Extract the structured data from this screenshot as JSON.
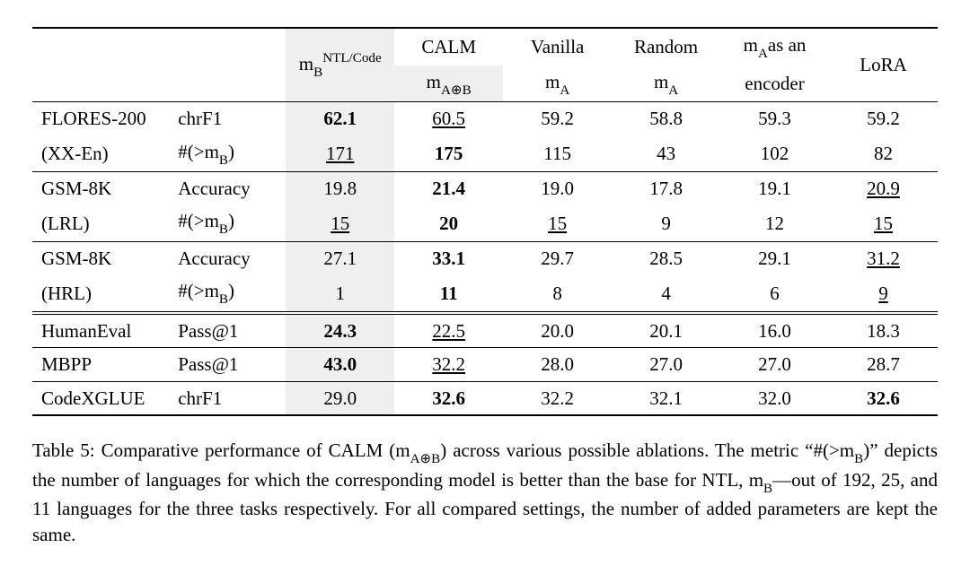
{
  "table": {
    "headers": {
      "mb_html": "m<span class='sub'>B</span><span class='sup'>NTL/Code</span>",
      "calm_line1": "CALM",
      "calm_line2_html": "m<span class='sub'>A⊕B</span>",
      "vanilla_line1": "Vanilla",
      "vanilla_line2_html": "m<span class='sub'>A</span>",
      "random_line1": "Random",
      "random_line2_html": "m<span class='sub'>A</span>",
      "enc_line1_html": "m<span class='sub'>A</span>as an",
      "enc_line2": "encoder",
      "lora": "LoRA"
    },
    "groups": [
      {
        "name_line1": "FLORES-200",
        "name_line2": "(XX-En)",
        "metric1": "chrF1",
        "metric2_html": "#(>m<span class='sub'>B</span>)",
        "row1": [
          {
            "v": "62.1",
            "b": true,
            "u": false
          },
          {
            "v": "60.5",
            "b": false,
            "u": true
          },
          {
            "v": "59.2",
            "b": false,
            "u": false
          },
          {
            "v": "58.8",
            "b": false,
            "u": false
          },
          {
            "v": "59.3",
            "b": false,
            "u": false
          },
          {
            "v": "59.2",
            "b": false,
            "u": false
          }
        ],
        "row2": [
          {
            "v": "171",
            "b": false,
            "u": true
          },
          {
            "v": "175",
            "b": true,
            "u": false
          },
          {
            "v": "115",
            "b": false,
            "u": false
          },
          {
            "v": "43",
            "b": false,
            "u": false
          },
          {
            "v": "102",
            "b": false,
            "u": false
          },
          {
            "v": "82",
            "b": false,
            "u": false
          }
        ],
        "border": "top"
      },
      {
        "name_line1": "GSM-8K",
        "name_line2": "(LRL)",
        "metric1": "Accuracy",
        "metric2_html": "#(>m<span class='sub'>B</span>)",
        "row1": [
          {
            "v": "19.8",
            "b": false,
            "u": false
          },
          {
            "v": "21.4",
            "b": true,
            "u": false
          },
          {
            "v": "19.0",
            "b": false,
            "u": false
          },
          {
            "v": "17.8",
            "b": false,
            "u": false
          },
          {
            "v": "19.1",
            "b": false,
            "u": false
          },
          {
            "v": "20.9",
            "b": false,
            "u": true
          }
        ],
        "row2": [
          {
            "v": "15",
            "b": false,
            "u": true
          },
          {
            "v": "20",
            "b": true,
            "u": false
          },
          {
            "v": "15",
            "b": false,
            "u": true
          },
          {
            "v": "9",
            "b": false,
            "u": false
          },
          {
            "v": "12",
            "b": false,
            "u": false
          },
          {
            "v": "15",
            "b": false,
            "u": true
          }
        ],
        "border": "mid"
      },
      {
        "name_line1": "GSM-8K",
        "name_line2": "(HRL)",
        "metric1": "Accuracy",
        "metric2_html": "#(>m<span class='sub'>B</span>)",
        "row1": [
          {
            "v": "27.1",
            "b": false,
            "u": false
          },
          {
            "v": "33.1",
            "b": true,
            "u": false
          },
          {
            "v": "29.7",
            "b": false,
            "u": false
          },
          {
            "v": "28.5",
            "b": false,
            "u": false
          },
          {
            "v": "29.1",
            "b": false,
            "u": false
          },
          {
            "v": "31.2",
            "b": false,
            "u": true
          }
        ],
        "row2": [
          {
            "v": "1",
            "b": false,
            "u": false
          },
          {
            "v": "11",
            "b": true,
            "u": false
          },
          {
            "v": "8",
            "b": false,
            "u": false
          },
          {
            "v": "4",
            "b": false,
            "u": false
          },
          {
            "v": "6",
            "b": false,
            "u": false
          },
          {
            "v": "9",
            "b": false,
            "u": true
          }
        ],
        "border": "mid"
      }
    ],
    "singles": [
      {
        "name": "HumanEval",
        "metric": "Pass@1",
        "row": [
          {
            "v": "24.3",
            "b": true,
            "u": false
          },
          {
            "v": "22.5",
            "b": false,
            "u": true
          },
          {
            "v": "20.0",
            "b": false,
            "u": false
          },
          {
            "v": "20.1",
            "b": false,
            "u": false
          },
          {
            "v": "16.0",
            "b": false,
            "u": false
          },
          {
            "v": "18.3",
            "b": false,
            "u": false
          }
        ],
        "border": "dbl"
      },
      {
        "name": "MBPP",
        "metric": "Pass@1",
        "row": [
          {
            "v": "43.0",
            "b": true,
            "u": false
          },
          {
            "v": "32.2",
            "b": false,
            "u": true
          },
          {
            "v": "28.0",
            "b": false,
            "u": false
          },
          {
            "v": "27.0",
            "b": false,
            "u": false
          },
          {
            "v": "27.0",
            "b": false,
            "u": false
          },
          {
            "v": "28.7",
            "b": false,
            "u": false
          }
        ],
        "border": "mid"
      },
      {
        "name": "CodeXGLUE",
        "metric": "chrF1",
        "row": [
          {
            "v": "29.0",
            "b": false,
            "u": false
          },
          {
            "v": "32.6",
            "b": true,
            "u": false
          },
          {
            "v": "32.2",
            "b": false,
            "u": false
          },
          {
            "v": "32.1",
            "b": false,
            "u": false
          },
          {
            "v": "32.0",
            "b": false,
            "u": false
          },
          {
            "v": "32.6",
            "b": true,
            "u": false
          }
        ],
        "border": "mid",
        "bottom": true
      }
    ]
  },
  "caption_html": "Table 5: Comparative performance of CALM (m<span class='sub'>A⊕B</span>) across various possible ablations. The metric “#(>m<span class='sub'>B</span>)” depicts the number of languages for which the corresponding model is better than the base for NTL, m<span class='sub'>B</span>—out of 192, 25, and 11 languages for the three tasks respectively. For all compared settings, the number of added parameters are kept the same."
}
